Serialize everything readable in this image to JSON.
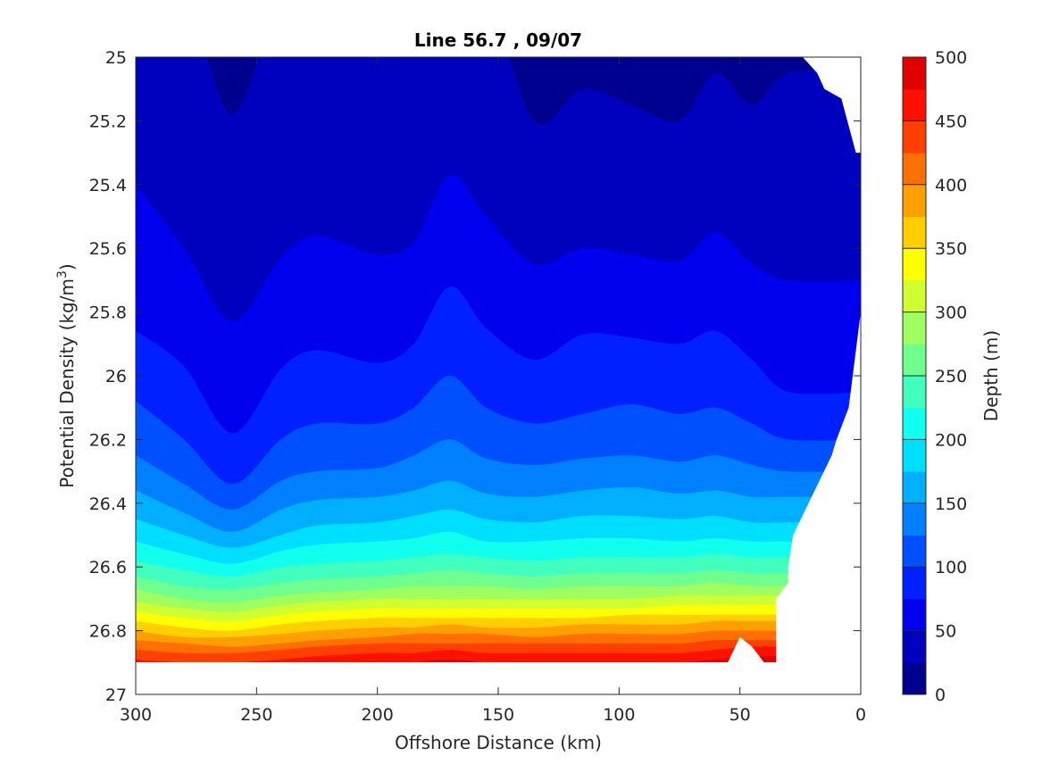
{
  "chart_data": {
    "type": "contour",
    "title": "Line 56.7 , 09/07",
    "xlabel": "Offshore Distance (km)",
    "ylabel": "Potential Density (kg/m",
    "ylabel_superscript": "3",
    "ylabel_suffix": ")",
    "colorbar_label": "Depth (m)",
    "xlim": [
      300,
      0
    ],
    "ylim": [
      25,
      27
    ],
    "x_reversed": true,
    "y_reversed": true,
    "x_ticks": [
      300,
      250,
      200,
      150,
      100,
      50,
      0
    ],
    "y_ticks": [
      25,
      25.2,
      25.4,
      25.6,
      25.8,
      26,
      26.2,
      26.4,
      26.6,
      26.8,
      27
    ],
    "y_tick_labels": [
      "25",
      "25.2",
      "25.4",
      "25.6",
      "25.8",
      "26",
      "26.2",
      "26.4",
      "26.6",
      "26.8",
      "27"
    ],
    "colorbar_ticks": [
      0,
      50,
      100,
      150,
      200,
      250,
      300,
      350,
      400,
      450,
      500
    ],
    "colorbar_range": [
      0,
      500
    ],
    "contour_interval": 25,
    "level_colors": [
      "#00008f",
      "#0000bf",
      "#0000ef",
      "#0020ff",
      "#0050ff",
      "#0080ff",
      "#00afff",
      "#00dfff",
      "#10ffef",
      "#40ffbf",
      "#70ff8f",
      "#9fff60",
      "#cfff30",
      "#ffff00",
      "#ffcf00",
      "#ff9f00",
      "#ff7000",
      "#ff4000",
      "#ff1000",
      "#df0000"
    ],
    "data_bottom_density": 26.9,
    "x_samples": [
      300,
      280,
      260,
      240,
      225,
      200,
      185,
      170,
      155,
      135,
      115,
      95,
      75,
      60,
      45,
      30
    ],
    "isopycnal_depths": [
      {
        "depth": 25,
        "density": [
          24.8,
          24.8,
          25.18,
          24.8,
          24.8,
          24.8,
          24.8,
          24.8,
          24.8,
          25.2,
          25.1,
          25.15,
          25.2,
          25.05,
          25.15,
          25.05
        ]
      },
      {
        "depth": 50,
        "density": [
          25.4,
          25.6,
          25.83,
          25.63,
          25.56,
          25.62,
          25.58,
          25.37,
          25.5,
          25.65,
          25.6,
          25.62,
          25.64,
          25.55,
          25.65,
          25.7
        ]
      },
      {
        "depth": 75,
        "density": [
          25.86,
          25.97,
          26.18,
          25.98,
          25.92,
          25.96,
          25.9,
          25.72,
          25.85,
          25.95,
          25.87,
          25.88,
          25.9,
          25.86,
          25.95,
          26.05
        ]
      },
      {
        "depth": 100,
        "density": [
          26.08,
          26.2,
          26.34,
          26.2,
          26.15,
          26.15,
          26.1,
          26.0,
          26.1,
          26.15,
          26.12,
          26.09,
          26.12,
          26.1,
          26.15,
          26.2
        ]
      },
      {
        "depth": 125,
        "density": [
          26.25,
          26.34,
          26.42,
          26.33,
          26.3,
          26.29,
          26.25,
          26.2,
          26.26,
          26.28,
          26.26,
          26.25,
          26.27,
          26.25,
          26.28,
          26.3
        ]
      },
      {
        "depth": 150,
        "density": [
          26.36,
          26.43,
          26.49,
          26.42,
          26.39,
          26.38,
          26.36,
          26.33,
          26.37,
          26.38,
          26.36,
          26.35,
          26.37,
          26.36,
          26.38,
          26.38
        ]
      },
      {
        "depth": 175,
        "density": [
          26.45,
          26.5,
          26.54,
          26.5,
          26.47,
          26.46,
          26.44,
          26.42,
          26.45,
          26.46,
          26.44,
          26.44,
          26.45,
          26.44,
          26.46,
          26.46
        ]
      },
      {
        "depth": 200,
        "density": [
          26.52,
          26.56,
          26.59,
          26.55,
          26.53,
          26.52,
          26.51,
          26.49,
          26.52,
          26.52,
          26.51,
          26.51,
          26.52,
          26.51,
          26.52,
          26.52
        ]
      },
      {
        "depth": 225,
        "density": [
          26.58,
          26.61,
          26.63,
          26.6,
          26.59,
          26.58,
          26.57,
          26.56,
          26.57,
          26.58,
          26.57,
          26.57,
          26.57,
          26.56,
          26.57,
          26.57
        ]
      },
      {
        "depth": 250,
        "density": [
          26.63,
          26.66,
          26.67,
          26.65,
          26.64,
          26.63,
          26.62,
          26.61,
          26.62,
          26.63,
          26.62,
          26.62,
          26.62,
          26.61,
          26.62,
          26.62
        ]
      },
      {
        "depth": 275,
        "density": [
          26.67,
          26.7,
          26.71,
          26.69,
          26.68,
          26.67,
          26.66,
          26.66,
          26.66,
          26.67,
          26.66,
          26.66,
          26.66,
          26.65,
          26.66,
          26.66
        ]
      },
      {
        "depth": 300,
        "density": [
          26.71,
          26.73,
          26.74,
          26.72,
          26.71,
          26.7,
          26.7,
          26.7,
          26.7,
          26.7,
          26.7,
          26.7,
          26.69,
          26.69,
          26.69,
          26.69
        ]
      },
      {
        "depth": 325,
        "density": [
          26.74,
          26.76,
          26.77,
          26.75,
          26.74,
          26.73,
          26.73,
          26.73,
          26.73,
          26.73,
          26.73,
          26.73,
          26.72,
          26.72,
          26.72,
          26.72
        ]
      },
      {
        "depth": 350,
        "density": [
          26.77,
          26.79,
          26.8,
          26.78,
          26.77,
          26.76,
          26.76,
          26.76,
          26.76,
          26.76,
          26.76,
          26.75,
          26.75,
          26.75,
          26.75,
          26.75
        ]
      },
      {
        "depth": 375,
        "density": [
          26.8,
          26.82,
          26.82,
          26.81,
          26.8,
          26.79,
          26.79,
          26.78,
          26.79,
          26.79,
          26.78,
          26.78,
          26.78,
          26.77,
          26.77,
          26.77
        ]
      },
      {
        "depth": 400,
        "density": [
          26.83,
          26.84,
          26.85,
          26.84,
          26.83,
          26.82,
          26.81,
          26.81,
          26.81,
          26.82,
          26.81,
          26.81,
          26.81,
          26.8,
          26.8,
          26.8
        ]
      },
      {
        "depth": 425,
        "density": [
          26.86,
          26.87,
          26.87,
          26.86,
          26.85,
          26.84,
          26.84,
          26.84,
          26.84,
          26.84,
          26.84,
          26.84,
          26.84,
          26.83,
          26.83,
          26.83
        ]
      },
      {
        "depth": 450,
        "density": [
          26.89,
          26.9,
          26.9,
          26.89,
          26.88,
          26.87,
          26.87,
          26.86,
          26.87,
          26.87,
          26.87,
          26.87,
          26.87,
          26.86,
          26.85,
          26.85
        ]
      },
      {
        "depth": 475,
        "density": [
          26.93,
          26.93,
          26.93,
          26.93,
          26.92,
          26.91,
          26.9,
          26.89,
          26.9,
          26.91,
          26.9,
          26.9,
          26.9,
          26.89,
          26.88,
          26.88
        ]
      }
    ],
    "no_data_outline": {
      "x": [
        24,
        18,
        15,
        8,
        2,
        0,
        0,
        5,
        10,
        12,
        28,
        30,
        30,
        35,
        35,
        40,
        45,
        50,
        55,
        38
      ],
      "density": [
        25,
        25.05,
        25.1,
        25.13,
        25.3,
        25.3,
        25.8,
        26.1,
        26.2,
        26.25,
        26.5,
        26.6,
        26.65,
        26.7,
        26.9,
        26.9,
        26.85,
        26.82,
        26.9,
        26.9
      ]
    }
  }
}
